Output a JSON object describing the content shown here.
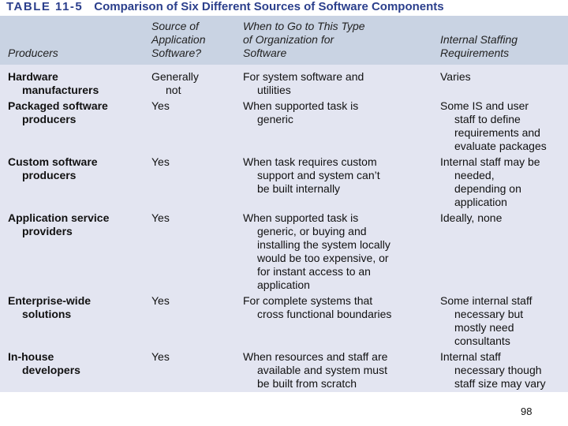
{
  "header": {
    "label": "TABLE 11-5",
    "title": "Comparison of Six Different Sources of Software Components"
  },
  "table": {
    "columns": [
      [
        "Producers"
      ],
      [
        "Source of",
        "Application",
        "Software?"
      ],
      [
        "When to Go to This Type",
        "of Organization for",
        "Software"
      ],
      [
        "Internal Staffing",
        "Requirements"
      ]
    ],
    "rows": [
      [
        [
          "Hardware",
          "manufacturers"
        ],
        [
          "Generally",
          "not"
        ],
        [
          "For system software and",
          "utilities"
        ],
        [
          "Varies"
        ]
      ],
      [
        [
          "Packaged software",
          "producers"
        ],
        [
          "Yes"
        ],
        [
          "When supported task is",
          "generic"
        ],
        [
          "Some IS and user",
          "staff to define",
          "requirements and",
          "evaluate packages"
        ]
      ],
      [
        [
          "Custom software",
          "producers"
        ],
        [
          "Yes"
        ],
        [
          "When task requires custom",
          "support and system can’t",
          "be built internally"
        ],
        [
          "Internal staff may be",
          "needed,",
          "depending on",
          "application"
        ]
      ],
      [
        [
          "Application service",
          "providers"
        ],
        [
          "Yes"
        ],
        [
          "When supported task is",
          "generic, or buying and",
          "installing the system locally",
          "would be too expensive, or",
          "for instant access to an",
          "application"
        ],
        [
          "Ideally, none"
        ]
      ],
      [
        [
          "Enterprise-wide",
          "solutions"
        ],
        [
          "Yes"
        ],
        [
          "For complete systems that",
          "cross functional boundaries"
        ],
        [
          "Some internal staff",
          "necessary but",
          "mostly need",
          "consultants"
        ]
      ],
      [
        [
          "In-house",
          "developers"
        ],
        [
          "Yes"
        ],
        [
          "When resources and staff are",
          "available and system must",
          "be built from scratch"
        ],
        [
          "Internal staff",
          "necessary though",
          "staff size may vary"
        ]
      ]
    ]
  },
  "footer": {
    "page": "98"
  }
}
